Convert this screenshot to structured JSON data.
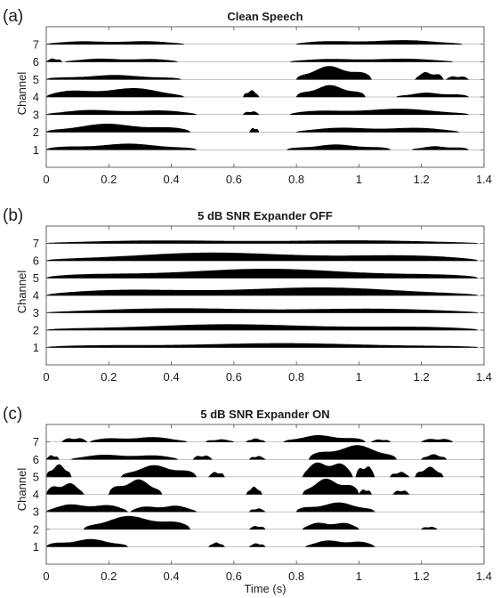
{
  "chart_data": [
    {
      "type": "area",
      "panel_label": "(a)",
      "title": "Clean Speech",
      "xlabel": "",
      "ylabel": "Channel",
      "xlim": [
        0,
        1.4
      ],
      "ylim": [
        0,
        8
      ],
      "x_ticks": [
        "0",
        "0.2",
        "0.4",
        "0.6",
        "0.8",
        "1",
        "1.2",
        "1.4"
      ],
      "y_ticks": [
        "1",
        "2",
        "3",
        "4",
        "5",
        "6",
        "7"
      ],
      "x_values": [
        0,
        1.4
      ],
      "series": [
        {
          "channel": 1,
          "segments": [
            [
              0.0,
              0.48,
              0.35
            ],
            [
              0.77,
              1.1,
              0.3
            ],
            [
              1.17,
              1.35,
              0.2
            ]
          ]
        },
        {
          "channel": 2,
          "segments": [
            [
              0.0,
              0.46,
              0.5
            ],
            [
              0.65,
              0.68,
              0.25
            ],
            [
              0.8,
              1.32,
              0.3
            ]
          ]
        },
        {
          "channel": 3,
          "segments": [
            [
              0.0,
              0.48,
              0.3
            ],
            [
              0.63,
              0.68,
              0.2
            ],
            [
              0.78,
              1.35,
              0.35
            ]
          ]
        },
        {
          "channel": 4,
          "segments": [
            [
              0.0,
              0.44,
              0.55
            ],
            [
              0.63,
              0.68,
              0.4
            ],
            [
              0.8,
              1.02,
              0.7
            ],
            [
              1.12,
              1.35,
              0.25
            ]
          ]
        },
        {
          "channel": 5,
          "segments": [
            [
              0.0,
              0.43,
              0.25
            ],
            [
              0.8,
              1.04,
              0.8
            ],
            [
              1.18,
              1.27,
              0.45
            ],
            [
              1.28,
              1.35,
              0.2
            ]
          ]
        },
        {
          "channel": 6,
          "segments": [
            [
              0.0,
              0.05,
              0.2
            ],
            [
              0.06,
              0.42,
              0.2
            ],
            [
              0.78,
              1.3,
              0.2
            ]
          ]
        },
        {
          "channel": 7,
          "segments": [
            [
              0.0,
              0.44,
              0.2
            ],
            [
              0.8,
              1.33,
              0.25
            ]
          ]
        }
      ]
    },
    {
      "type": "area",
      "panel_label": "(b)",
      "title": "5 dB SNR Expander OFF",
      "xlabel": "",
      "ylabel": "Channel",
      "xlim": [
        0,
        1.4
      ],
      "ylim": [
        0,
        8
      ],
      "x_ticks": [
        "0",
        "0.2",
        "0.4",
        "0.6",
        "0.8",
        "1",
        "1.2",
        "1.4"
      ],
      "y_ticks": [
        "1",
        "2",
        "3",
        "4",
        "5",
        "6",
        "7"
      ],
      "x_values": [
        0,
        1.4
      ],
      "series": [
        {
          "channel": 1,
          "segments": [
            [
              0.0,
              1.38,
              0.25
            ]
          ]
        },
        {
          "channel": 2,
          "segments": [
            [
              0.0,
              1.38,
              0.35
            ]
          ]
        },
        {
          "channel": 3,
          "segments": [
            [
              0.0,
              1.38,
              0.3
            ]
          ]
        },
        {
          "channel": 4,
          "segments": [
            [
              0.0,
              1.38,
              0.5
            ]
          ]
        },
        {
          "channel": 5,
          "segments": [
            [
              0.0,
              1.38,
              0.55
            ]
          ]
        },
        {
          "channel": 6,
          "segments": [
            [
              0.0,
              1.38,
              0.5
            ]
          ]
        },
        {
          "channel": 7,
          "segments": [
            [
              0.0,
              1.38,
              0.2
            ]
          ]
        }
      ]
    },
    {
      "type": "area",
      "panel_label": "(c)",
      "title": "5 dB SNR Expander ON",
      "xlabel": "Time (s)",
      "ylabel": "Channel",
      "xlim": [
        0,
        1.4
      ],
      "ylim": [
        0,
        8
      ],
      "x_ticks": [
        "0",
        "0.2",
        "0.4",
        "0.6",
        "0.8",
        "1",
        "1.2",
        "1.4"
      ],
      "y_ticks": [
        "1",
        "2",
        "3",
        "4",
        "5",
        "6",
        "7"
      ],
      "x_values": [
        0,
        1.4
      ],
      "series": [
        {
          "channel": 1,
          "segments": [
            [
              0.0,
              0.26,
              0.45
            ],
            [
              0.52,
              0.57,
              0.25
            ],
            [
              0.65,
              0.7,
              0.2
            ],
            [
              0.83,
              1.05,
              0.4
            ]
          ]
        },
        {
          "channel": 2,
          "segments": [
            [
              0.12,
              0.46,
              0.8
            ],
            [
              0.65,
              0.7,
              0.2
            ],
            [
              0.82,
              1.0,
              0.45
            ],
            [
              1.2,
              1.25,
              0.15
            ]
          ]
        },
        {
          "channel": 3,
          "segments": [
            [
              0.0,
              0.26,
              0.5
            ],
            [
              0.27,
              0.48,
              0.4
            ],
            [
              0.65,
              0.7,
              0.2
            ],
            [
              0.8,
              1.05,
              0.55
            ]
          ]
        },
        {
          "channel": 4,
          "segments": [
            [
              0.0,
              0.12,
              0.7
            ],
            [
              0.2,
              0.37,
              0.9
            ],
            [
              0.64,
              0.69,
              0.45
            ],
            [
              0.82,
              1.0,
              0.95
            ],
            [
              1.0,
              1.04,
              0.3
            ],
            [
              1.11,
              1.16,
              0.25
            ]
          ]
        },
        {
          "channel": 5,
          "segments": [
            [
              0.0,
              0.08,
              0.75
            ],
            [
              0.24,
              0.48,
              0.7
            ],
            [
              0.52,
              0.57,
              0.3
            ],
            [
              0.82,
              0.98,
              1.0
            ],
            [
              0.99,
              1.05,
              0.7
            ],
            [
              1.1,
              1.16,
              0.3
            ],
            [
              1.18,
              1.27,
              0.6
            ]
          ]
        },
        {
          "channel": 6,
          "segments": [
            [
              0.0,
              0.04,
              0.25
            ],
            [
              0.08,
              0.42,
              0.3
            ],
            [
              0.47,
              0.53,
              0.25
            ],
            [
              0.65,
              0.7,
              0.2
            ],
            [
              0.84,
              1.12,
              0.85
            ],
            [
              1.2,
              1.28,
              0.3
            ]
          ]
        },
        {
          "channel": 7,
          "segments": [
            [
              0.05,
              0.13,
              0.25
            ],
            [
              0.14,
              0.45,
              0.3
            ],
            [
              0.51,
              0.6,
              0.15
            ],
            [
              0.64,
              0.7,
              0.2
            ],
            [
              0.76,
              1.02,
              0.4
            ],
            [
              1.04,
              1.1,
              0.15
            ],
            [
              1.2,
              1.3,
              0.2
            ]
          ]
        }
      ]
    }
  ],
  "colors": {
    "fill": "#000000",
    "axis": "#555555",
    "text": "#1a1a1a"
  }
}
